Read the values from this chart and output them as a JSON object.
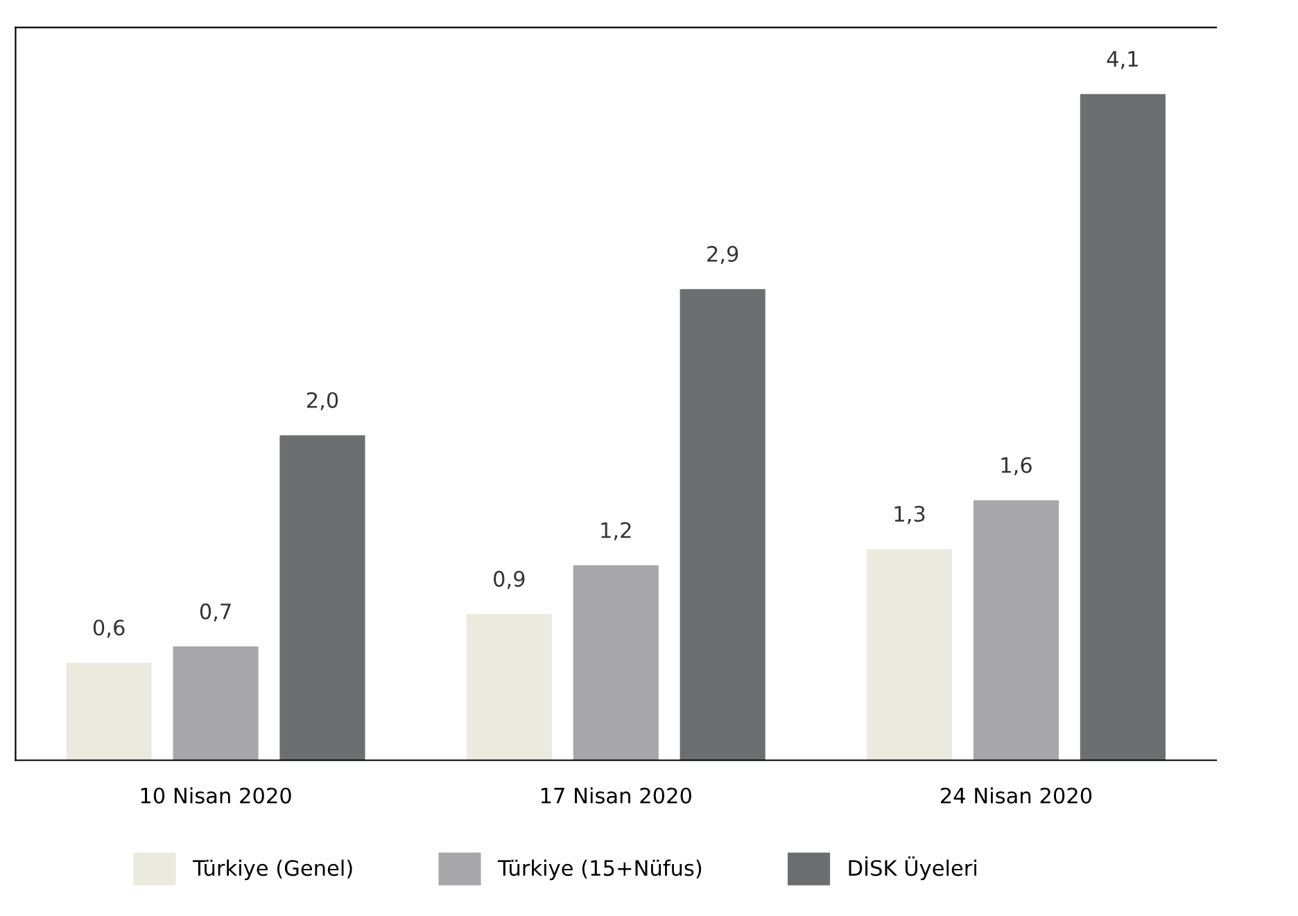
{
  "chart_data": {
    "type": "bar",
    "categories": [
      "10 Nisan 2020",
      "17 Nisan 2020",
      "24 Nisan 2020"
    ],
    "series": [
      {
        "name": "Türkiye (Genel)",
        "color": "#ece9df",
        "values": [
          0.6,
          0.9,
          1.3
        ],
        "value_labels": [
          "0,6",
          "0,9",
          "1,3"
        ]
      },
      {
        "name": "Türkiye (15+Nüfus)",
        "color": "#a7a7ab",
        "values": [
          0.7,
          1.2,
          1.6
        ],
        "value_labels": [
          "0,7",
          "1,2",
          "1,6"
        ]
      },
      {
        "name": "DİSK Üyeleri",
        "color": "#6d6e70",
        "values": [
          2.0,
          2.9,
          4.1
        ],
        "value_labels": [
          "2,0",
          "2,9",
          "4,1"
        ]
      }
    ],
    "legend": "bottom",
    "grid": false
  }
}
